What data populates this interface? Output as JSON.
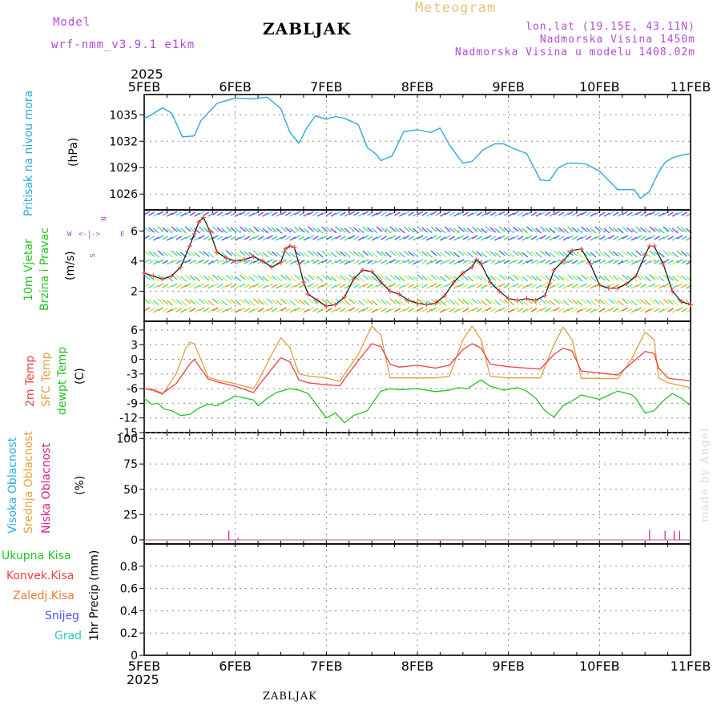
{
  "header": {
    "model_label": "Model",
    "model_name": "wrf-nmm_v3.9.1 e1km",
    "title": "ZABLJAK",
    "meteogram_label": "Meteogram",
    "lonlat": "lon,lat (19.15E, 43.11N)",
    "altitude": "Nadmorska Visina 1450m",
    "model_altitude": "Nadmorska Visina u modelu 1408.02m"
  },
  "footer": {
    "station": "ZABLJAK",
    "credit": "made by Angel"
  },
  "colors": {
    "pressure": "#2aa8e0",
    "temp2m": "#ee4040",
    "sfc": "#e0a040",
    "dewpt": "#22c422",
    "wind_speed": "#111111",
    "wind_marker": "#ff4040",
    "cloud_high": "#2aa8e0",
    "cloud_mid": "#e6a33c",
    "cloud_low": "#d41c8c",
    "purple": "#b04bd8"
  },
  "chart_data": [
    {
      "type": "line",
      "panel": "pressure",
      "top_year": "2025",
      "x_ticks": [
        "5FEB",
        "6FEB",
        "7FEB",
        "8FEB",
        "9FEB",
        "10FEB",
        "11FEB"
      ],
      "ylabels": [
        "Pritisak na nivou mora",
        "(hPa)"
      ],
      "yticks": [
        "1035",
        "1032",
        "1029",
        "1026"
      ],
      "ylim": [
        1024.2,
        1037.3
      ],
      "grid": true,
      "series": [
        {
          "x": [
            0,
            0.08,
            0.2,
            0.3,
            0.42,
            0.55,
            0.62,
            0.8,
            1.0,
            1.2,
            1.35,
            1.5,
            1.6,
            1.7,
            1.78,
            1.88,
            2.0,
            2.1,
            2.2,
            2.35,
            2.45,
            2.55,
            2.6,
            2.72,
            2.85,
            3.0,
            3.15,
            3.25,
            3.35,
            3.5,
            3.6,
            3.72,
            3.85,
            3.95,
            4.05,
            4.2,
            4.35,
            4.45,
            4.55,
            4.65,
            4.75,
            4.85,
            5.0,
            5.2,
            5.38,
            5.45,
            5.55,
            5.65,
            5.72,
            5.8,
            5.9,
            6.0
          ],
          "values": [
            1034.6,
            1035.0,
            1035.8,
            1035.2,
            1032.5,
            1032.6,
            1034.3,
            1036.3,
            1036.9,
            1036.8,
            1037.0,
            1035.7,
            1033.0,
            1031.8,
            1033.4,
            1034.9,
            1034.5,
            1034.8,
            1034.6,
            1033.9,
            1031.3,
            1030.5,
            1029.8,
            1030.3,
            1033.1,
            1033.3,
            1033.0,
            1033.5,
            1031.6,
            1029.5,
            1029.7,
            1031.0,
            1031.7,
            1031.7,
            1031.2,
            1030.6,
            1027.6,
            1027.5,
            1029.0,
            1029.5,
            1029.5,
            1029.4,
            1028.6,
            1026.5,
            1026.5,
            1025.5,
            1026.3,
            1028.5,
            1029.6,
            1030.1,
            1030.4,
            1030.6
          ]
        }
      ]
    },
    {
      "type": "line",
      "panel": "wind",
      "ylabels": [
        "10m Vjetar",
        "Brzina i Pravac",
        "(m/s)"
      ],
      "compass": {
        "n": "N",
        "s": "S",
        "w": "W",
        "e": "E",
        "arrows": "<-|->"
      },
      "yticks": [
        "6",
        "4",
        "2"
      ],
      "ylim": [
        0,
        7.4
      ],
      "grid": true,
      "series": [
        {
          "name": "10m speed",
          "x": [
            0,
            0.1,
            0.2,
            0.3,
            0.4,
            0.5,
            0.55,
            0.6,
            0.65,
            0.72,
            0.8,
            0.9,
            1.0,
            1.1,
            1.2,
            1.3,
            1.4,
            1.5,
            1.55,
            1.6,
            1.65,
            1.7,
            1.75,
            1.8,
            1.9,
            2.0,
            2.1,
            2.2,
            2.3,
            2.4,
            2.5,
            2.6,
            2.7,
            2.8,
            2.9,
            3.0,
            3.1,
            3.2,
            3.3,
            3.4,
            3.5,
            3.6,
            3.65,
            3.7,
            3.8,
            3.9,
            4.0,
            4.1,
            4.2,
            4.3,
            4.4,
            4.45,
            4.5,
            4.6,
            4.7,
            4.8,
            4.9,
            5.0,
            5.1,
            5.2,
            5.3,
            5.4,
            5.5,
            5.55,
            5.6,
            5.7,
            5.8,
            5.9,
            6.0
          ],
          "values": [
            3.2,
            3.0,
            2.8,
            3.0,
            3.6,
            5.0,
            5.8,
            6.6,
            6.9,
            6.0,
            4.6,
            4.2,
            4.0,
            4.1,
            4.3,
            4.0,
            3.6,
            3.9,
            4.8,
            5.0,
            4.9,
            3.8,
            2.6,
            1.8,
            1.4,
            1.0,
            1.1,
            1.6,
            2.8,
            3.4,
            3.3,
            2.6,
            2.0,
            1.8,
            1.4,
            1.2,
            1.1,
            1.2,
            1.7,
            2.6,
            3.2,
            3.6,
            4.1,
            3.8,
            2.6,
            2.0,
            1.5,
            1.4,
            1.5,
            1.4,
            1.7,
            2.5,
            3.4,
            4.0,
            4.7,
            4.8,
            3.8,
            2.4,
            2.2,
            2.2,
            2.5,
            3.0,
            4.4,
            5.0,
            5.0,
            3.8,
            2.0,
            1.3,
            1.1
          ]
        }
      ]
    },
    {
      "type": "line",
      "panel": "temperature",
      "ylabels": [
        "2m Temp",
        "SFC Temp",
        "dewpt Temp",
        "(C)"
      ],
      "yticks": [
        "6",
        "3",
        "0",
        "-3",
        "-6",
        "-9",
        "-12",
        "-15"
      ],
      "ylim": [
        -15,
        7.8
      ],
      "grid": true,
      "series": [
        {
          "name": "2m Temp",
          "x": [
            0,
            0.1,
            0.2,
            0.35,
            0.5,
            0.55,
            0.7,
            0.8,
            1.0,
            1.2,
            1.25,
            1.4,
            1.5,
            1.6,
            1.7,
            1.8,
            2.0,
            2.15,
            2.2,
            2.35,
            2.5,
            2.6,
            2.7,
            2.8,
            3.0,
            3.2,
            3.35,
            3.5,
            3.6,
            3.7,
            3.8,
            4.0,
            4.2,
            4.35,
            4.5,
            4.6,
            4.7,
            4.8,
            5.0,
            5.2,
            5.35,
            5.5,
            5.6,
            5.65,
            5.75,
            5.8,
            6.0
          ],
          "values": [
            -6.0,
            -6.2,
            -7.0,
            -5.0,
            -1.0,
            0.0,
            -4.0,
            -4.6,
            -5.5,
            -6.8,
            -5.5,
            -2.0,
            0.3,
            -0.5,
            -4.2,
            -4.8,
            -5.2,
            -5.4,
            -4.0,
            -0.3,
            3.2,
            2.6,
            -1.0,
            -1.6,
            -1.2,
            -1.8,
            -1.2,
            2.0,
            3.2,
            2.3,
            -1.0,
            -1.5,
            -1.8,
            -2.0,
            1.0,
            2.3,
            1.7,
            -2.4,
            -2.8,
            -3.2,
            -0.8,
            1.6,
            1.2,
            -1.8,
            -3.8,
            -4.0,
            -4.4
          ]
        },
        {
          "name": "SFC Temp",
          "x": [
            0,
            0.1,
            0.2,
            0.35,
            0.45,
            0.5,
            0.55,
            0.6,
            0.7,
            0.8,
            1.0,
            1.2,
            1.25,
            1.4,
            1.5,
            1.6,
            1.7,
            1.8,
            2.0,
            2.15,
            2.2,
            2.35,
            2.5,
            2.6,
            2.7,
            2.8,
            3.0,
            3.2,
            3.35,
            3.5,
            3.6,
            3.7,
            3.8,
            4.0,
            4.2,
            4.35,
            4.5,
            4.6,
            4.7,
            4.8,
            5.0,
            5.2,
            5.35,
            5.5,
            5.6,
            5.65,
            5.75,
            5.8,
            6.0
          ],
          "values": [
            -6.0,
            -6.4,
            -7.2,
            -3.0,
            2.0,
            3.5,
            3.2,
            1.0,
            -3.6,
            -4.2,
            -5.0,
            -6.0,
            -4.5,
            1.0,
            4.4,
            2.4,
            -3.0,
            -3.4,
            -3.8,
            -4.5,
            -3.0,
            1.0,
            6.8,
            5.0,
            -3.8,
            -3.8,
            -3.8,
            -3.8,
            -3.5,
            4.0,
            6.8,
            4.0,
            -3.5,
            -3.8,
            -3.8,
            -3.8,
            3.0,
            6.6,
            4.0,
            -3.9,
            -3.9,
            -4.0,
            0.0,
            5.6,
            4.0,
            -3.8,
            -4.8,
            -5.0,
            -5.8
          ]
        },
        {
          "name": "dewpt Temp",
          "x": [
            0,
            0.08,
            0.15,
            0.22,
            0.3,
            0.4,
            0.5,
            0.6,
            0.7,
            0.8,
            1.0,
            1.2,
            1.25,
            1.35,
            1.45,
            1.6,
            1.7,
            1.8,
            1.9,
            2.0,
            2.1,
            2.2,
            2.3,
            2.45,
            2.6,
            2.7,
            2.8,
            3.0,
            3.2,
            3.35,
            3.45,
            3.55,
            3.65,
            3.7,
            3.8,
            3.95,
            4.1,
            4.2,
            4.3,
            4.4,
            4.5,
            4.6,
            4.7,
            4.8,
            5.0,
            5.2,
            5.35,
            5.4,
            5.5,
            5.6,
            5.7,
            5.8,
            5.9,
            6.0
          ],
          "values": [
            -8.0,
            -9.2,
            -9.0,
            -10.2,
            -10.5,
            -11.5,
            -11.3,
            -10.0,
            -9.2,
            -9.5,
            -7.5,
            -8.3,
            -9.5,
            -8.0,
            -6.8,
            -6.0,
            -6.3,
            -7.0,
            -9.5,
            -12.0,
            -11.0,
            -13.0,
            -11.5,
            -10.5,
            -6.5,
            -6.0,
            -6.2,
            -6.0,
            -6.6,
            -6.3,
            -5.8,
            -6.0,
            -4.8,
            -4.2,
            -5.5,
            -6.3,
            -5.8,
            -6.5,
            -8.0,
            -10.5,
            -11.8,
            -9.5,
            -8.5,
            -7.3,
            -8.2,
            -6.5,
            -7.2,
            -8.0,
            -11.0,
            -10.5,
            -8.5,
            -7.0,
            -8.0,
            -9.5
          ]
        }
      ]
    },
    {
      "type": "bar",
      "panel": "cloud",
      "ylabels": [
        "Visoka Oblacnost",
        "Srednja Oblacnost",
        "Niska Oblacnost",
        "(%)"
      ],
      "yticks": [
        "100",
        "75",
        "50",
        "25",
        "0"
      ],
      "ylim": [
        0,
        100
      ],
      "grid": true,
      "series": [
        {
          "name": "Niska Oblacnost",
          "x": [
            0.93,
            1.03,
            5.55,
            5.72,
            5.82,
            5.88
          ],
          "values": [
            9,
            2,
            10,
            9,
            9,
            9
          ]
        }
      ]
    },
    {
      "type": "bar",
      "panel": "precip",
      "legend": [
        "Ukupna Kisa",
        "Konvek.Kisa",
        "Zaledj.Kisa",
        "Snijeg",
        "Grad"
      ],
      "ylabels": [
        "1hr Precip (mm)"
      ],
      "yticks": [
        "0.8",
        "0.6",
        "0.4",
        "0.2",
        "0"
      ],
      "ylim": [
        0,
        1.0
      ],
      "grid": true,
      "bottom_year": "2025",
      "series": []
    }
  ]
}
